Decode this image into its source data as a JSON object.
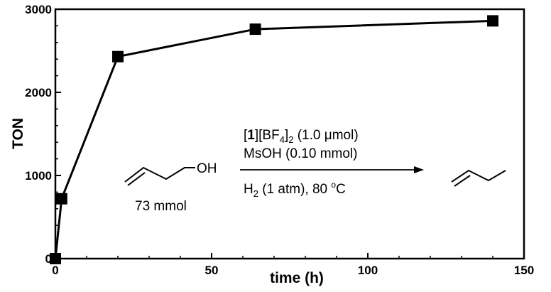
{
  "chart_data": {
    "type": "line",
    "xlabel": "time (h)",
    "ylabel": "TON",
    "xlim": [
      0,
      150
    ],
    "ylim": [
      0,
      3000
    ],
    "x_ticks": [
      "0",
      "50",
      "100",
      "150"
    ],
    "y_ticks": [
      "0",
      "1000",
      "2000",
      "3000"
    ],
    "grid": false,
    "series": [
      {
        "marker": "square",
        "color": "#000000",
        "points": [
          {
            "x": 0,
            "y": 0
          },
          {
            "x": 2,
            "y": 720
          },
          {
            "x": 20,
            "y": 2430
          },
          {
            "x": 64,
            "y": 2760
          },
          {
            "x": 140,
            "y": 2860
          }
        ]
      }
    ]
  },
  "scheme": {
    "reactant_label": "OH",
    "reactant_amount": "73 mmol",
    "catalyst_bold": "1",
    "catalyst_bracket_open": "[",
    "catalyst_bracket_close": "]",
    "catalyst_anion_main": "[BF",
    "catalyst_anion_sub": "4",
    "catalyst_anion_close": "]",
    "catalyst_count_sub": "2",
    "catalyst_amount": " (1.0 μmol)",
    "additive": "MsOH (0.10 mmol)",
    "conditions_h": "H",
    "conditions_h_sub": "2",
    "conditions_rest": " (1 atm), 80 ",
    "conditions_deg": "o",
    "conditions_c": "C"
  }
}
